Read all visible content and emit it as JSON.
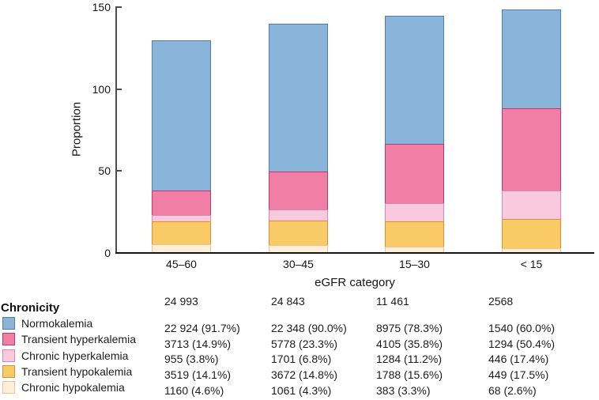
{
  "chart_data": {
    "type": "bar",
    "stacked": true,
    "title": "",
    "ylabel": "Proportion",
    "xlabel": "eGFR category",
    "ylim": [
      0,
      150
    ],
    "yticks": [
      0,
      50,
      100,
      150
    ],
    "grid": false,
    "legend_position": "bottom-left-table",
    "legend_header": "Chronicity",
    "categories": [
      "45–60",
      "30–45",
      "15–30",
      "< 15"
    ],
    "category_totals": [
      "24 993",
      "24 843",
      "11 461",
      "2568"
    ],
    "stack_order_bottom_to_top": [
      "Chronic hypokalemia",
      "Transient hypokalemia",
      "Chronic hyperkalemia",
      "Transient hyperkalemia",
      "Normokalemia"
    ],
    "series": [
      {
        "name": "Normokalemia",
        "fill": "#89b5db",
        "border": "#4e7eae",
        "values_pct": [
          91.7,
          90.0,
          78.3,
          60.0
        ],
        "cell_labels": [
          "22 924 (91.7%)",
          "22 348 (90.0%)",
          "8975 (78.3%)",
          "1540 (60.0%)"
        ]
      },
      {
        "name": "Transient hyperkalemia",
        "fill": "#f17fa5",
        "border": "#c0386e",
        "values_pct": [
          14.9,
          23.3,
          35.8,
          50.4
        ],
        "cell_labels": [
          "3713 (14.9%)",
          "5778 (23.3%)",
          "4105 (35.8%)",
          "1294 (50.4%)"
        ]
      },
      {
        "name": "Chronic hyperkalemia",
        "fill": "#f9c9dd",
        "border": "#dd84b1",
        "values_pct": [
          3.8,
          6.8,
          11.2,
          17.4
        ],
        "cell_labels": [
          "955 (3.8%)",
          "1701 (6.8%)",
          "1284 (11.2%)",
          "446 (17.4%)"
        ]
      },
      {
        "name": "Transient hypokalemia",
        "fill": "#f9cb67",
        "border": "#df8c3c",
        "values_pct": [
          14.1,
          14.8,
          15.6,
          17.5
        ],
        "cell_labels": [
          "3519 (14.1%)",
          "3672 (14.8%)",
          "1788 (15.6%)",
          "449 (17.5%)"
        ]
      },
      {
        "name": "Chronic hypokalemia",
        "fill": "#fdf0d7",
        "border": "#efc193",
        "values_pct": [
          4.6,
          4.3,
          3.3,
          2.6
        ],
        "cell_labels": [
          "1160 (4.6%)",
          "1061 (4.3%)",
          "383 (3.3%)",
          "68 (2.6%)"
        ]
      }
    ]
  }
}
